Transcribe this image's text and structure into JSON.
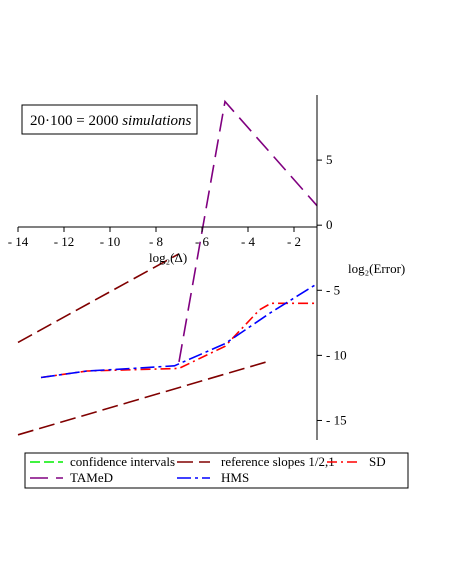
{
  "annotation": {
    "prefix": "20·100 = 2000 ",
    "italic": "simulations"
  },
  "colors": {
    "confidence": "#00ee00",
    "reference": "#800000",
    "sd": "#ff0000",
    "tamed": "#800080",
    "hms": "#0000ff"
  },
  "chart_data": {
    "type": "line",
    "xlabel": "log₂(Δ)",
    "ylabel": "log₂(Error)",
    "xlim": [
      -14,
      -1
    ],
    "ylim": [
      -16.5,
      10
    ],
    "x_ticks": [
      -14,
      -12,
      -10,
      -8,
      -6,
      -4,
      -2
    ],
    "y_ticks": [
      5,
      0,
      -5,
      -10,
      -15
    ],
    "grid": false,
    "legend_position": "bottom",
    "series": [
      {
        "name": "confidence intervals",
        "color": "#00ee00",
        "dash": "10,4",
        "points": []
      },
      {
        "name": "reference slopes 1/2,1",
        "color": "#800000",
        "dash": "16,6",
        "segments": [
          [
            [
              -14,
              -9.0
            ],
            [
              -7,
              -2.2
            ]
          ],
          [
            [
              -14,
              -16.1
            ],
            [
              -3,
              -10.4
            ]
          ]
        ]
      },
      {
        "name": "SD",
        "color": "#ff0000",
        "dash": "10,4,2,4",
        "points": [
          [
            -13,
            -11.7
          ],
          [
            -11,
            -11.2
          ],
          [
            -9,
            -11.1
          ],
          [
            -7,
            -11.0
          ],
          [
            -5,
            -9.3
          ],
          [
            -3.5,
            -6.5
          ],
          [
            -3,
            -6.0
          ],
          [
            -1,
            -6.0
          ]
        ]
      },
      {
        "name": "TAMeD",
        "color": "#800080",
        "dash": "18,8",
        "points": [
          [
            -7,
            -10.5
          ],
          [
            -5,
            9.5
          ],
          [
            -3,
            5.5
          ],
          [
            -1,
            1.5
          ]
        ]
      },
      {
        "name": "HMS",
        "color": "#0000ff",
        "dash": "14,4,3,4",
        "points": [
          [
            -13,
            -11.7
          ],
          [
            -11,
            -11.2
          ],
          [
            -9,
            -11.0
          ],
          [
            -7.2,
            -10.8
          ],
          [
            -5,
            -9.1
          ],
          [
            -3,
            -6.7
          ],
          [
            -1,
            -4.5
          ]
        ]
      }
    ]
  }
}
